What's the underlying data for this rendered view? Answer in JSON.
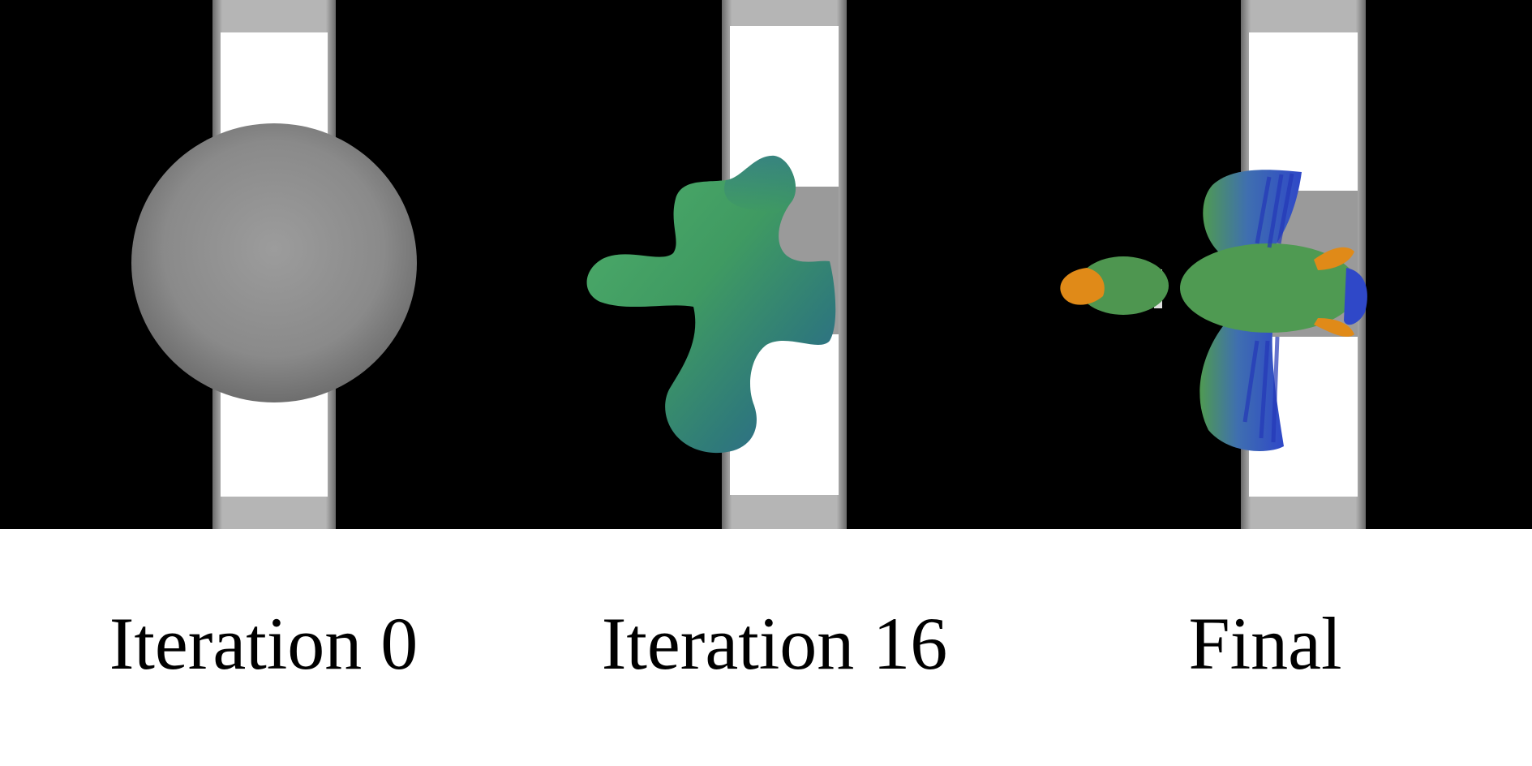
{
  "panels": [
    {
      "id": "iteration-0",
      "caption": "Iteration 0",
      "object": "grey-sphere"
    },
    {
      "id": "iteration-16",
      "caption": "Iteration 16",
      "object": "green-blob"
    },
    {
      "id": "final",
      "caption": "Final",
      "object": "duck"
    }
  ],
  "colors": {
    "background": "#000000",
    "frame_light": "#ffffff",
    "frame_grey": "#9a9a9a",
    "sphere": "#8c8c8c",
    "blob_green": "#3fa05a",
    "blob_blue": "#2f6f96",
    "duck_green": "#4f9a52",
    "duck_blue": "#2f48c8",
    "duck_orange": "#e08a18"
  }
}
